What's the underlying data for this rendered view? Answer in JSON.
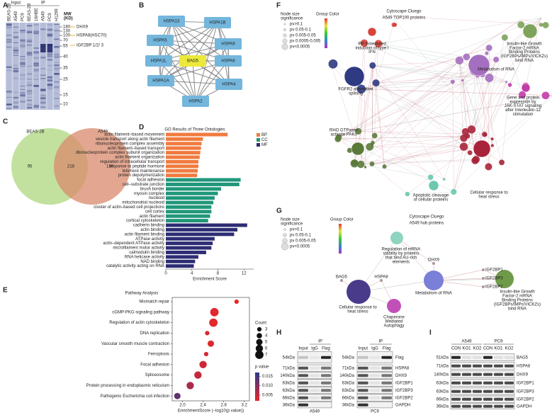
{
  "panels": [
    "A",
    "B",
    "C",
    "D",
    "E",
    "F",
    "G",
    "H",
    "I"
  ],
  "gel": {
    "groups": [
      "Input",
      "IP"
    ],
    "lanes": [
      "BEAS-2B",
      "A549",
      "PC9",
      "BEAS-2B",
      "16HBE",
      "A549",
      "PC9",
      "H1299"
    ],
    "mw_title": [
      "MW",
      "(KD)"
    ],
    "markers": [
      180,
      130,
      100,
      70,
      55,
      40,
      35,
      25,
      15,
      10
    ],
    "annotations": [
      "DHX9",
      "HSPA8(HSC70)",
      "IGF2BP 1/2/ 3"
    ]
  },
  "network": {
    "nodes": [
      {
        "label": "HSPA13",
        "color": "#74b6dc"
      },
      {
        "label": "HSPA1B",
        "color": "#74b6dc"
      },
      {
        "label": "HSPA5",
        "color": "#74b6dc"
      },
      {
        "label": "HSPA9",
        "color": "#74b6dc"
      },
      {
        "label": "HSPA1L",
        "color": "#74b6dc"
      },
      {
        "label": "BAG5",
        "color": "#ece93a",
        "text_color": "#d22"
      },
      {
        "label": "HSPA8",
        "color": "#74b6dc",
        "text_color": "#d22"
      },
      {
        "label": "HSPA1A",
        "color": "#74b6dc"
      },
      {
        "label": "HSPA4",
        "color": "#74b6dc"
      },
      {
        "label": "HSPA2",
        "color": "#74b6dc"
      }
    ]
  },
  "venn": {
    "sets": [
      "BEAS-2B",
      "A549"
    ],
    "colors": [
      "#b7dc8e",
      "#d98a6c"
    ],
    "counts": [
      95,
      218,
      130
    ]
  },
  "chart_data": [
    {
      "type": "hbar",
      "title": "GO Results of Three Ontologies",
      "x_label": "Enrichment Score",
      "categories": [
        "actin filament–based movement",
        "vesicle transport along actin filament",
        "ribonucleoprotein complex assembly",
        "actin filament–based transport",
        "ribonucleoprotein complex subunit organization",
        "actin filament organization",
        "regulation of intracellular transport",
        "response to peptide hormone",
        "telomere maintenance",
        "protein depolymerization",
        "focal adhesion",
        "cell–substrate junction",
        "brush border",
        "myosin complex",
        "nucleoid",
        "mitochondrial nucleoid",
        "cluster of actin–based cell projections",
        "cell cortex",
        "actin filament",
        "cortical cytoskeleton",
        "cadherin binding",
        "actin binding",
        "actin filament binding",
        "ATPase activity",
        "actin–dependent ATPase activity",
        "microfilament motor activity",
        "calmodulin binding",
        "RNA helicase activity",
        "NAD binding",
        "catalytic activity acting on RNA"
      ],
      "series": [
        {
          "name": "BP",
          "color": "#f07b3f",
          "values": [
            9.5,
            5.7,
            5.5,
            5.4,
            5.3,
            5.2,
            5.0,
            5.0,
            4.9,
            4.8,
            null,
            null,
            null,
            null,
            null,
            null,
            null,
            null,
            null,
            null,
            null,
            null,
            null,
            null,
            null,
            null,
            null,
            null,
            null,
            null
          ]
        },
        {
          "name": "CC",
          "color": "#21977a",
          "values": [
            null,
            null,
            null,
            null,
            null,
            null,
            null,
            null,
            null,
            null,
            11.5,
            11.3,
            8.5,
            8.0,
            7.5,
            7.3,
            7.0,
            7.0,
            6.8,
            6.5,
            null,
            null,
            null,
            null,
            null,
            null,
            null,
            null,
            null,
            null
          ]
        },
        {
          "name": "MF",
          "color": "#2d2d74",
          "values": [
            null,
            null,
            null,
            null,
            null,
            null,
            null,
            null,
            null,
            null,
            null,
            null,
            null,
            null,
            null,
            null,
            null,
            null,
            null,
            null,
            12.5,
            11.0,
            10.5,
            7.5,
            7.2,
            7.0,
            6.2,
            5.0,
            4.5,
            4.3
          ]
        }
      ],
      "highlighted": [
        true,
        false,
        false,
        false,
        false,
        true,
        false,
        false,
        false,
        false,
        true,
        true,
        false,
        false,
        false,
        false,
        true,
        false,
        true,
        false,
        true,
        true,
        true,
        false,
        true,
        true,
        false,
        false,
        false,
        false
      ],
      "highlight_color": "#e8312a",
      "xlim": [
        0,
        13.5
      ],
      "xticks": [
        0,
        4,
        8,
        12
      ],
      "legend": "top-right"
    },
    {
      "type": "dot",
      "title": "Pathway Analysis",
      "x_label": "EnrichmentScore (−log10(p value))",
      "categories": [
        "Mismatch repair",
        "cGMP-PKG signaling pathway",
        "Regulation of actin cytoskeleton",
        "DNA replication",
        "Vascular smooth muscle contraction",
        "Ferroptosis",
        "Focal adhesion",
        "Spliceosome",
        "Protein processing in endoplasmic reticulum",
        "Pathogenic Escherichia coli infection"
      ],
      "values": [
        3.05,
        2.62,
        2.6,
        2.48,
        2.55,
        2.46,
        2.4,
        2.3,
        2.15,
        1.9
      ],
      "sizes": [
        3,
        7,
        7,
        3,
        5,
        3,
        6,
        6,
        6,
        5
      ],
      "pvalues": [
        0.0009,
        0.0024,
        0.0025,
        0.0033,
        0.0028,
        0.0035,
        0.004,
        0.005,
        0.0071,
        0.0126
      ],
      "highlighted": [
        false,
        false,
        true,
        false,
        false,
        false,
        true,
        false,
        false,
        false
      ],
      "highlight_color": "#e8312a",
      "xlim": [
        1.8,
        3.3
      ],
      "xticks": [
        {
          "value": 2,
          "label": "2.0"
        },
        2.4,
        2.8,
        3.2
      ],
      "size_title": "Count",
      "size_legend": [
        3,
        4,
        5,
        6,
        7
      ],
      "color_title": "p value",
      "clim": [
        0.002,
        0.017
      ],
      "cticks": [
        0.015,
        {
          "value": 0.01,
          "label": "0.010"
        },
        0.005
      ],
      "color_low": "#e8262a",
      "color_high": "#2b3a8c"
    }
  ],
  "cluego_top100": {
    "size_title": [
      "Node size",
      "significance"
    ],
    "sizes": [
      "pv>0.1",
      "pv 0.05-0.1",
      "pv 0.005-0.05",
      "pv 0.0005-0.005",
      "pv<0.0005"
    ],
    "color_title": "Group Color",
    "title": "Cytoscape Cluego",
    "subtitle": "A549 TOP100 proteins",
    "clusters": [
      {
        "label": [
          "IRF3-mediated",
          "induction of type I",
          "IFN"
        ],
        "color": "#d9443a"
      },
      {
        "label": [
          "Insulin-like Growth",
          "Factor-2 mRNA",
          "Binding Proteins",
          "(IGF2BPs/IMPs/VICKZs)",
          "bind RNA"
        ],
        "color": "#7ea35a"
      },
      {
        "label": [
          "Metabolism of RNA"
        ],
        "color": "#a56fbf"
      },
      {
        "label": [
          "FGFR2 alternative",
          "splicing"
        ],
        "color": "#2e3a82"
      },
      {
        "label": [
          "Gene and protein",
          "expression by",
          "JAK-STAT signaling",
          "after Interleukin-12",
          "stimulation"
        ],
        "color": "#c23ca8"
      },
      {
        "label": [
          "RHO GTPases",
          "activate PAKs"
        ],
        "color": "#5a7a3a"
      },
      {
        "label": [
          "Cellular response to",
          "heat stress"
        ],
        "color": "#a8233a"
      },
      {
        "label": [
          "Apoptotic cleavage",
          "of cellular proteins"
        ],
        "color": "#6cc8b0"
      }
    ]
  },
  "cluego_hub": {
    "size_title": [
      "Node size",
      "significance"
    ],
    "sizes": [
      "pv>0.1",
      "pv 0.05-0.1",
      "pv 0.005-0.05",
      "pv<0.0005"
    ],
    "color_title": "Group Color",
    "title": "Cytoscape Cluego",
    "subtitle": "A549 hub proteins",
    "clusters": [
      {
        "label": [
          "Regulation of mRNA",
          "stability by proteins",
          "that bind AU-rich",
          "elements"
        ],
        "color": "#8fd4c0"
      },
      {
        "label": [
          "Cellular response to",
          "heat stress"
        ],
        "color": "#4a3a8a"
      },
      {
        "label": [
          "Metabolism of RNA"
        ],
        "color": "#7a80d8"
      },
      {
        "label": [
          "Insulin-like Growth",
          "Factor-2 mRNA",
          "Binding Proteins",
          "(IGF2BPs/IMPs/VICKZs)",
          "bind RNA"
        ],
        "color": "#6f9a4a"
      },
      {
        "label": [
          "Chaperone",
          "Mediated",
          "Autophagy"
        ],
        "color": "#c050b8"
      }
    ],
    "genes": [
      "DHX9",
      "BAG5",
      "HSPA8",
      "IGF2BP1",
      "IGF2BP3",
      "IGF2BP2"
    ],
    "gene_color": "#d22"
  },
  "coip": {
    "ip": "IP",
    "columns": [
      "Input",
      "IgG",
      "Flag"
    ],
    "cells": [
      "A549",
      "PC9"
    ],
    "rows": [
      {
        "mw": "54kDa",
        "protein": "Flag"
      },
      {
        "mw": "71kDa",
        "protein": "HSPA8"
      },
      {
        "mw": "140kDa",
        "protein": "DHX9"
      },
      {
        "mw": "63kDa",
        "protein": "IGF2BP1"
      },
      {
        "mw": "63kDa",
        "protein": "IGF2BP3"
      },
      {
        "mw": "66kDa",
        "protein": "IGF2BP2"
      },
      {
        "mw": "36kDa",
        "protein": "GAPDH"
      }
    ]
  },
  "knockout": {
    "cells": [
      "A549",
      "PC9"
    ],
    "columns": [
      "CON",
      "KO1",
      "KO2"
    ],
    "rows": [
      {
        "mw": "51kDa",
        "protein": "BAG5"
      },
      {
        "mw": "71kDa",
        "protein": "HSPA8"
      },
      {
        "mw": "140kDa",
        "protein": "DHX9"
      },
      {
        "mw": "63kDa",
        "protein": "IGF2BP1"
      },
      {
        "mw": "63kDa",
        "protein": "IGF2BP3"
      },
      {
        "mw": "66kDa",
        "protein": "IGF2BP2"
      },
      {
        "mw": "36kDa",
        "protein": "GAPDH"
      }
    ]
  }
}
